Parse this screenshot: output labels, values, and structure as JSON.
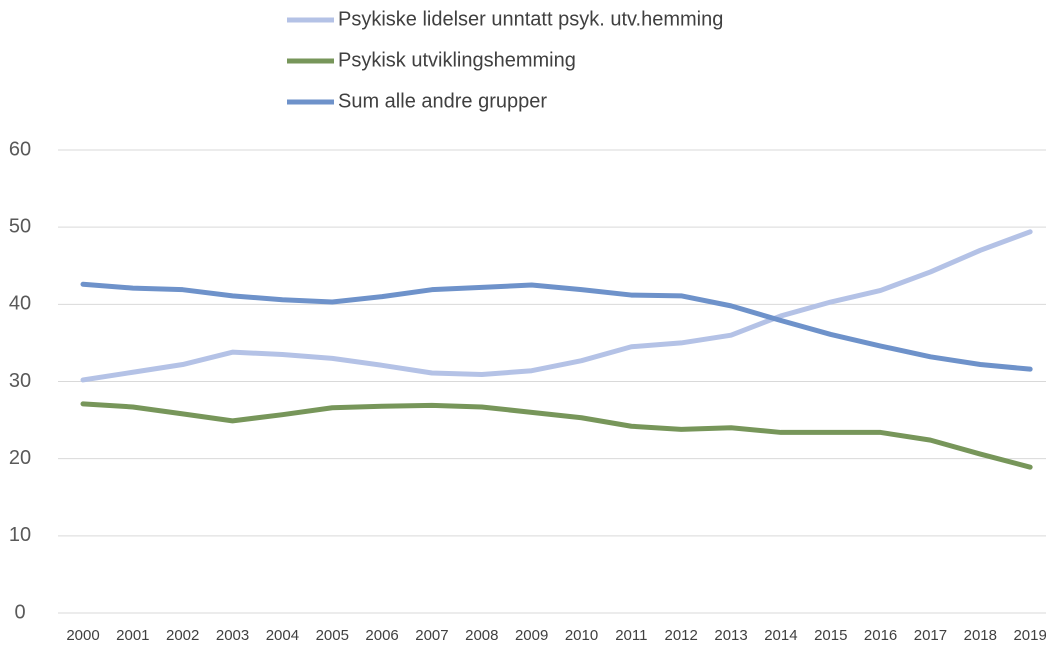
{
  "chart_data": {
    "type": "line",
    "categories": [
      "2000",
      "2001",
      "2002",
      "2003",
      "2004",
      "2005",
      "2006",
      "2007",
      "2008",
      "2009",
      "2010",
      "2011",
      "2012",
      "2013",
      "2014",
      "2015",
      "2016",
      "2017",
      "2018",
      "2019"
    ],
    "series": [
      {
        "name": "Psykiske lidelser unntatt psyk. utv.hemming",
        "color": "#b4c2e6",
        "values": [
          30.2,
          31.2,
          32.2,
          33.8,
          33.5,
          33.0,
          32.1,
          31.1,
          30.9,
          31.4,
          32.7,
          34.5,
          35.0,
          36.0,
          38.5,
          40.3,
          41.8,
          44.2,
          47.0,
          49.4
        ]
      },
      {
        "name": "Psykisk utviklingshemming",
        "color": "#77965a",
        "values": [
          27.1,
          26.7,
          25.8,
          24.9,
          25.7,
          26.6,
          26.8,
          26.9,
          26.7,
          26.0,
          25.3,
          24.2,
          23.8,
          24.0,
          23.4,
          23.4,
          23.4,
          22.4,
          20.6,
          18.9
        ]
      },
      {
        "name": "Sum alle andre grupper",
        "color": "#6e92ca",
        "values": [
          42.6,
          42.1,
          41.9,
          41.1,
          40.6,
          40.3,
          41.0,
          41.9,
          42.2,
          42.5,
          41.9,
          41.2,
          41.1,
          39.8,
          37.9,
          36.1,
          34.6,
          33.2,
          32.2,
          31.6
        ]
      }
    ],
    "ylim": [
      0,
      60
    ],
    "yticks": [
      0,
      10,
      20,
      30,
      40,
      50,
      60
    ],
    "grid": true
  }
}
